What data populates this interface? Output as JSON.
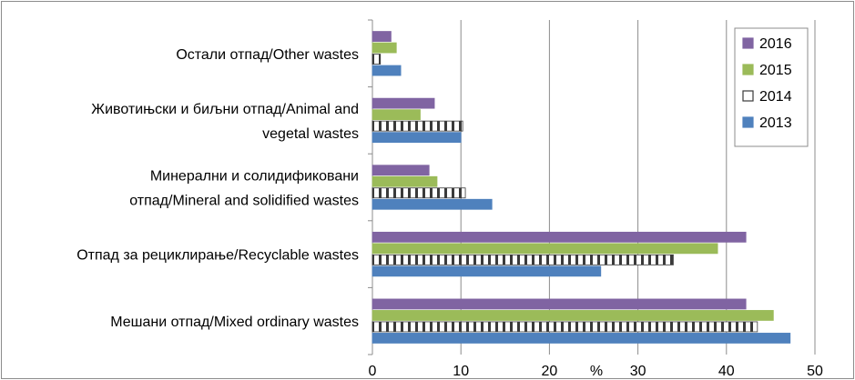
{
  "chart_data": {
    "type": "bar",
    "orientation": "horizontal",
    "categories": [
      [
        "Мешани отпад/Mixed ordinary wastes"
      ],
      [
        "Отпад за рециклирање/Recyclable wastes"
      ],
      [
        "Минерални и солидификовани",
        "отпад/Mineral and solidified wastes"
      ],
      [
        "Животињски и биљни отпад/Animal and",
        "vegetal wastes"
      ],
      [
        "Остали отпад/Other wastes"
      ]
    ],
    "series": [
      {
        "name": "2013",
        "values": [
          47.2,
          25.8,
          13.5,
          10.0,
          3.2
        ],
        "color": "#4f81bd",
        "pattern": "solid"
      },
      {
        "name": "2014",
        "values": [
          43.5,
          34.0,
          10.5,
          10.2,
          0.9
        ],
        "color": "#ffffff",
        "pattern": "checkered"
      },
      {
        "name": "2015",
        "values": [
          45.3,
          39.0,
          7.3,
          5.4,
          2.7
        ],
        "color": "#9bbb59",
        "pattern": "solid"
      },
      {
        "name": "2016",
        "values": [
          42.2,
          42.2,
          6.4,
          7.0,
          2.1
        ],
        "color": "#8064a2",
        "pattern": "solid"
      }
    ],
    "legend_order": [
      "2016",
      "2015",
      "2014",
      "2013"
    ],
    "xlabel": "%",
    "xlim": [
      0,
      50
    ],
    "xticks": [
      0,
      10,
      20,
      30,
      40,
      50
    ],
    "grid": true,
    "legend_position": "top-right"
  }
}
